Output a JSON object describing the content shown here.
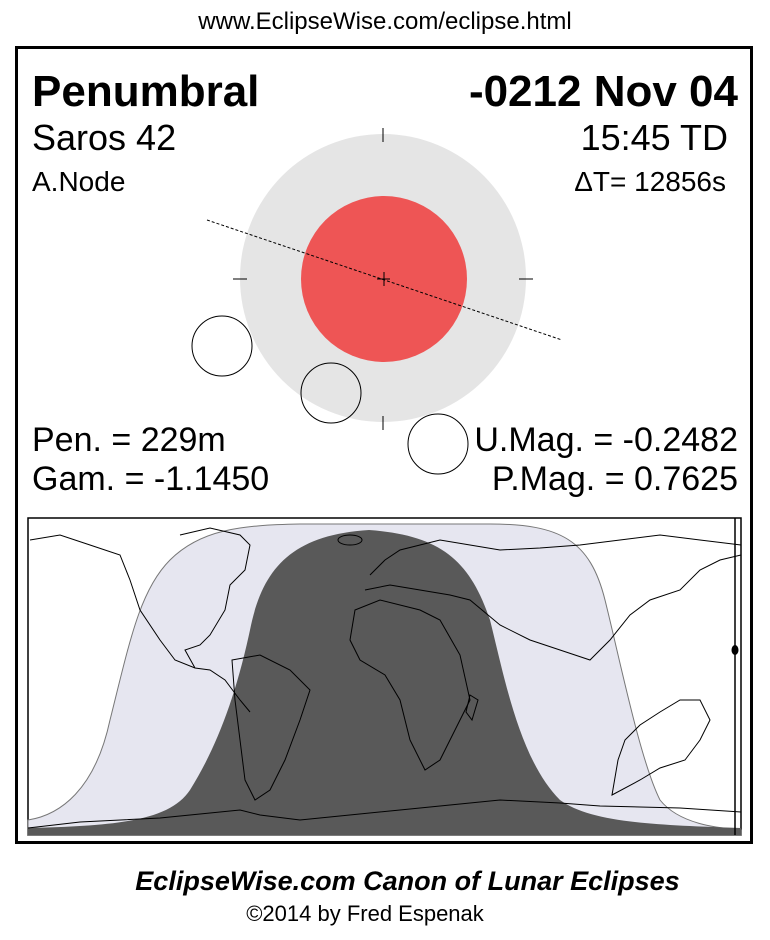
{
  "header": {
    "url": "www.EclipseWise.com/eclipse.html"
  },
  "eclipse": {
    "type": "Penumbral",
    "date": "-0212 Nov 04",
    "saros": "Saros  42",
    "time": "15:45 TD",
    "node": "A.Node",
    "delta_t": "ΔT=  12856s",
    "penumbral_duration": "Pen. = 229m",
    "gamma": "Gam. = -1.1450",
    "umbral_magnitude": "U.Mag. = -0.2482",
    "penumbral_magnitude": "P.Mag. = 0.7625"
  },
  "colors": {
    "penumbra": "#e5e5e5",
    "umbra": "#ee5555",
    "map_penumbral_zone": "#e6e6f0",
    "map_visible_zone": "#595959"
  },
  "footer": {
    "title": "EclipseWise.com Canon of Lunar Eclipses",
    "copyright": "©2014 by Fred Espenak"
  }
}
